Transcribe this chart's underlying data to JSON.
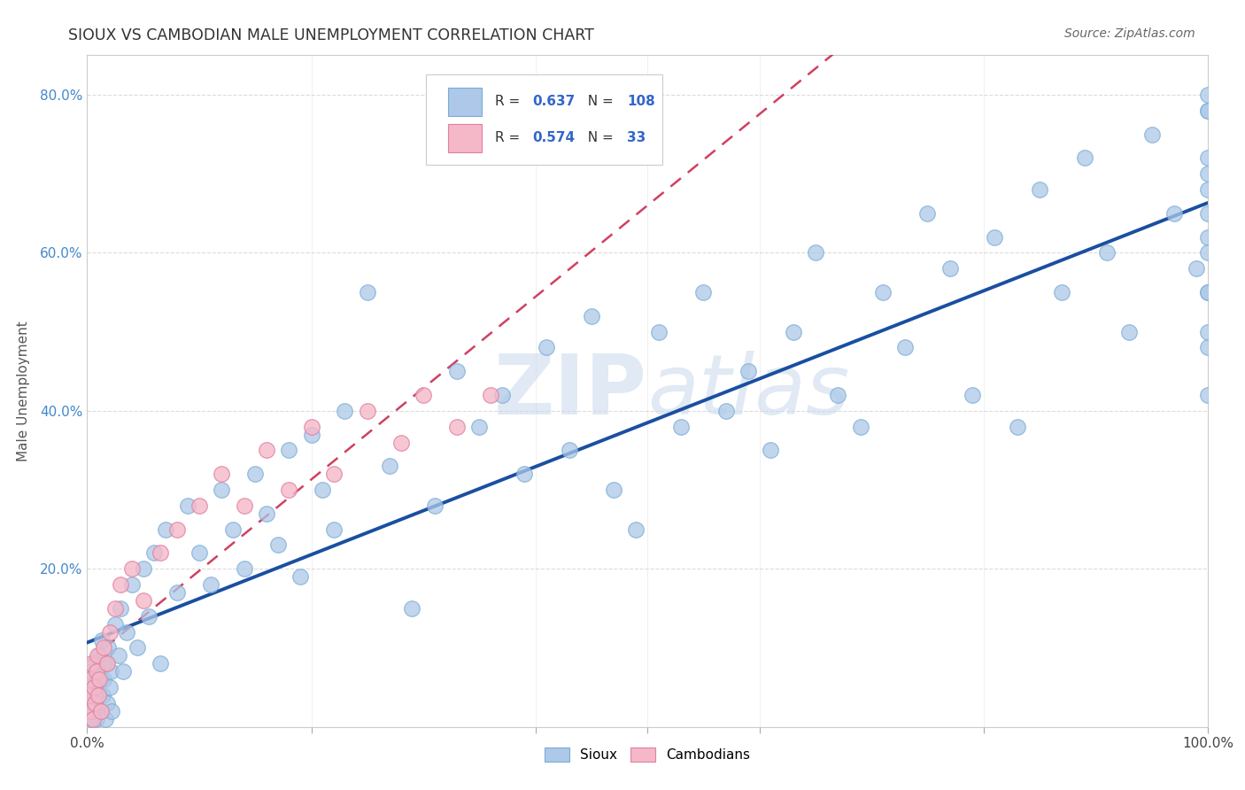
{
  "title": "SIOUX VS CAMBODIAN MALE UNEMPLOYMENT CORRELATION CHART",
  "source": "Source: ZipAtlas.com",
  "ylabel": "Male Unemployment",
  "xlim": [
    0,
    1.0
  ],
  "ylim": [
    0,
    0.85
  ],
  "sioux_color": "#adc8e8",
  "cambodian_color": "#f5b8c8",
  "sioux_edge_color": "#7aacd4",
  "cambodian_edge_color": "#e080a0",
  "line_sioux_color": "#1a4fa0",
  "line_cambodian_color": "#d04060",
  "background_color": "#ffffff",
  "watermark": "ZIPatlas",
  "R_sioux": 0.637,
  "N_sioux": 108,
  "R_cambodian": 0.574,
  "N_cambodian": 33,
  "sioux_x": [
    0.003,
    0.004,
    0.005,
    0.006,
    0.007,
    0.008,
    0.009,
    0.01,
    0.011,
    0.012,
    0.013,
    0.014,
    0.015,
    0.016,
    0.017,
    0.018,
    0.019,
    0.02,
    0.021,
    0.022,
    0.025,
    0.028,
    0.03,
    0.032,
    0.035,
    0.04,
    0.045,
    0.05,
    0.055,
    0.06,
    0.065,
    0.07,
    0.08,
    0.09,
    0.1,
    0.11,
    0.12,
    0.13,
    0.14,
    0.15,
    0.16,
    0.17,
    0.18,
    0.19,
    0.2,
    0.21,
    0.22,
    0.23,
    0.25,
    0.27,
    0.29,
    0.31,
    0.33,
    0.35,
    0.37,
    0.39,
    0.41,
    0.43,
    0.45,
    0.47,
    0.49,
    0.51,
    0.53,
    0.55,
    0.57,
    0.59,
    0.61,
    0.63,
    0.65,
    0.67,
    0.69,
    0.71,
    0.73,
    0.75,
    0.77,
    0.79,
    0.81,
    0.83,
    0.85,
    0.87,
    0.89,
    0.91,
    0.93,
    0.95,
    0.97,
    0.99,
    1.0,
    1.0,
    1.0,
    1.0,
    1.0,
    1.0,
    1.0,
    1.0,
    1.0,
    1.0,
    1.0,
    1.0,
    1.0,
    1.0,
    0.001,
    0.002,
    0.003,
    0.004,
    0.005,
    0.007,
    0.009,
    0.015
  ],
  "sioux_y": [
    0.04,
    0.02,
    0.06,
    0.08,
    0.03,
    0.01,
    0.05,
    0.07,
    0.09,
    0.02,
    0.11,
    0.04,
    0.06,
    0.01,
    0.08,
    0.03,
    0.1,
    0.05,
    0.07,
    0.02,
    0.13,
    0.09,
    0.15,
    0.07,
    0.12,
    0.18,
    0.1,
    0.2,
    0.14,
    0.22,
    0.08,
    0.25,
    0.17,
    0.28,
    0.22,
    0.18,
    0.3,
    0.25,
    0.2,
    0.32,
    0.27,
    0.23,
    0.35,
    0.19,
    0.37,
    0.3,
    0.25,
    0.4,
    0.55,
    0.33,
    0.15,
    0.28,
    0.45,
    0.38,
    0.42,
    0.32,
    0.48,
    0.35,
    0.52,
    0.3,
    0.25,
    0.5,
    0.38,
    0.55,
    0.4,
    0.45,
    0.35,
    0.5,
    0.6,
    0.42,
    0.38,
    0.55,
    0.48,
    0.65,
    0.58,
    0.42,
    0.62,
    0.38,
    0.68,
    0.55,
    0.72,
    0.6,
    0.5,
    0.75,
    0.65,
    0.58,
    0.78,
    0.65,
    0.7,
    0.55,
    0.8,
    0.42,
    0.62,
    0.5,
    0.68,
    0.6,
    0.55,
    0.78,
    0.48,
    0.72,
    0.03,
    0.05,
    0.01,
    0.07,
    0.02,
    0.04,
    0.06,
    0.08
  ],
  "cambodian_x": [
    0.001,
    0.002,
    0.003,
    0.004,
    0.005,
    0.006,
    0.007,
    0.008,
    0.009,
    0.01,
    0.011,
    0.012,
    0.015,
    0.018,
    0.02,
    0.025,
    0.03,
    0.04,
    0.05,
    0.065,
    0.08,
    0.1,
    0.12,
    0.14,
    0.16,
    0.18,
    0.2,
    0.22,
    0.25,
    0.28,
    0.3,
    0.33,
    0.36
  ],
  "cambodian_y": [
    0.04,
    0.06,
    0.02,
    0.08,
    0.01,
    0.05,
    0.03,
    0.07,
    0.09,
    0.04,
    0.06,
    0.02,
    0.1,
    0.08,
    0.12,
    0.15,
    0.18,
    0.2,
    0.16,
    0.22,
    0.25,
    0.28,
    0.32,
    0.28,
    0.35,
    0.3,
    0.38,
    0.32,
    0.4,
    0.36,
    0.42,
    0.38,
    0.42
  ]
}
